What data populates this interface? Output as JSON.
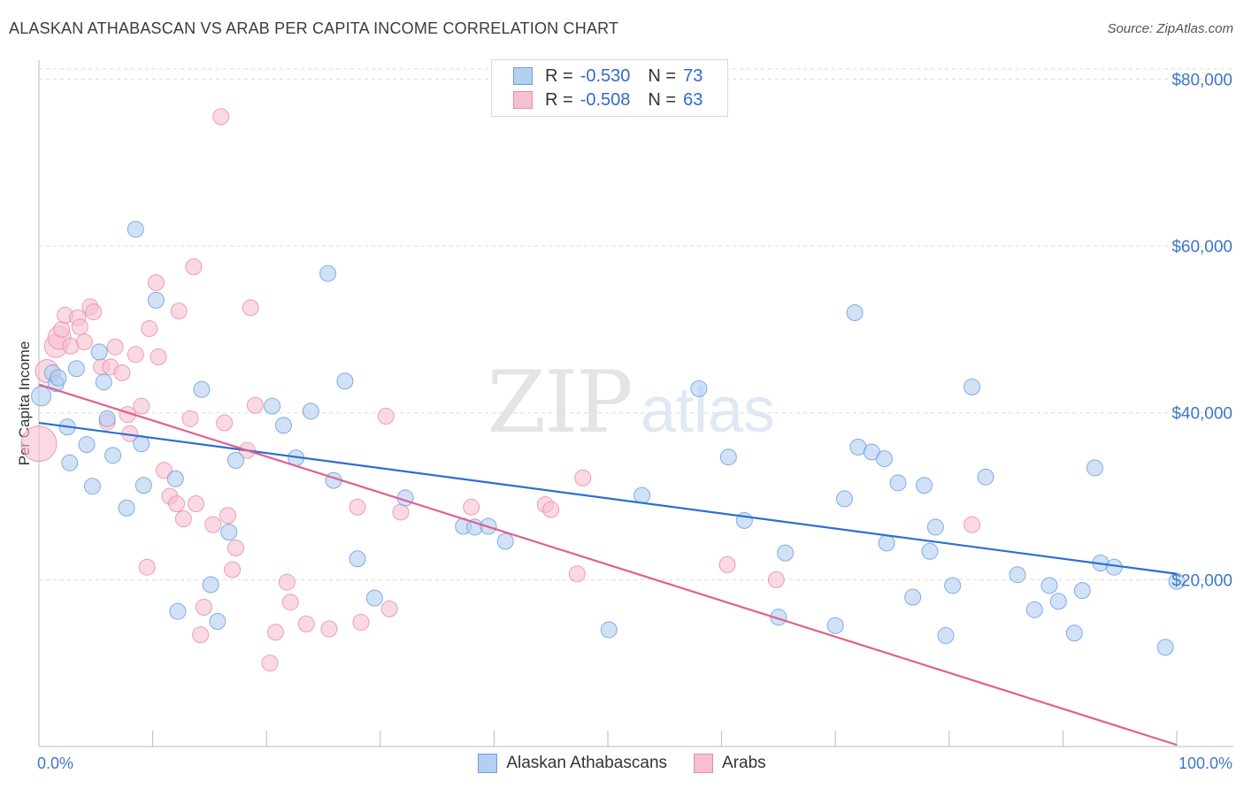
{
  "header": {
    "title": "ALASKAN ATHABASCAN VS ARAB PER CAPITA INCOME CORRELATION CHART",
    "source": "Source: ZipAtlas.com"
  },
  "colors": {
    "blue": "#6f9fe0",
    "blue_fill": "#b3cff2",
    "blue_line": "#2b6fd0",
    "pink": "#e88aa8",
    "pink_fill": "#f6c0d0",
    "pink_line": "#e0608e",
    "axis_text": "#3f76c8"
  },
  "legend_top": [
    {
      "r_label": "R =",
      "r_value": "-0.530",
      "n_label": "N =",
      "n_value": "73"
    },
    {
      "r_label": "R =",
      "r_value": "-0.508",
      "n_label": "N =",
      "n_value": "63"
    }
  ],
  "legend_bottom": [
    "Alaskan Athabascans",
    "Arabs"
  ],
  "chart_data": {
    "type": "scatter",
    "title": "ALASKAN ATHABASCAN VS ARAB PER CAPITA INCOME CORRELATION CHART",
    "xlabel": "",
    "ylabel": "Per Capita Income",
    "xlim": [
      0,
      100
    ],
    "ylim": [
      0,
      81000
    ],
    "x_tick_labels": [
      "0.0%",
      "100.0%"
    ],
    "y_ticks": [
      20000,
      40000,
      60000,
      80000
    ],
    "y_tick_labels": [
      "$20,000",
      "$40,000",
      "$60,000",
      "$80,000"
    ],
    "grid": true,
    "legend_position": "top-center",
    "series": [
      {
        "name": "Alaskan Athabascans",
        "r": -0.53,
        "n": 73,
        "trend": {
          "x": [
            0,
            100
          ],
          "y": [
            38800,
            20700
          ]
        },
        "points": [
          [
            0.2,
            42000
          ],
          [
            1.2,
            44800
          ],
          [
            1.5,
            43500
          ],
          [
            1.7,
            44200
          ],
          [
            2.5,
            38300
          ],
          [
            2.7,
            34000
          ],
          [
            3.3,
            45300
          ],
          [
            4.2,
            36200
          ],
          [
            4.7,
            31200
          ],
          [
            5.3,
            47300
          ],
          [
            5.7,
            43700
          ],
          [
            6.0,
            39300
          ],
          [
            6.5,
            34900
          ],
          [
            7.7,
            28600
          ],
          [
            8.5,
            62000
          ],
          [
            9.0,
            36300
          ],
          [
            9.2,
            31300
          ],
          [
            10.3,
            53500
          ],
          [
            12.0,
            32100
          ],
          [
            12.2,
            16200
          ],
          [
            14.3,
            42800
          ],
          [
            15.1,
            19400
          ],
          [
            15.7,
            15000
          ],
          [
            16.7,
            25700
          ],
          [
            17.3,
            34300
          ],
          [
            20.5,
            40800
          ],
          [
            21.5,
            38500
          ],
          [
            22.6,
            34600
          ],
          [
            23.9,
            40200
          ],
          [
            25.4,
            56700
          ],
          [
            25.9,
            31900
          ],
          [
            26.9,
            43800
          ],
          [
            28.0,
            22500
          ],
          [
            29.5,
            17800
          ],
          [
            32.2,
            29800
          ],
          [
            37.3,
            26400
          ],
          [
            38.3,
            26300
          ],
          [
            39.5,
            26400
          ],
          [
            41.0,
            24600
          ],
          [
            50.1,
            14000
          ],
          [
            53.0,
            30100
          ],
          [
            58.0,
            42900
          ],
          [
            60.6,
            34700
          ],
          [
            62.0,
            27100
          ],
          [
            65.0,
            15500
          ],
          [
            65.6,
            23200
          ],
          [
            70.0,
            14500
          ],
          [
            70.8,
            29700
          ],
          [
            71.7,
            52000
          ],
          [
            72.0,
            35900
          ],
          [
            73.2,
            35300
          ],
          [
            74.3,
            34500
          ],
          [
            74.5,
            24400
          ],
          [
            75.5,
            31600
          ],
          [
            76.8,
            17900
          ],
          [
            77.8,
            31300
          ],
          [
            78.3,
            23400
          ],
          [
            78.8,
            26300
          ],
          [
            79.7,
            13300
          ],
          [
            80.3,
            19300
          ],
          [
            82.0,
            43100
          ],
          [
            83.2,
            32300
          ],
          [
            86.0,
            20600
          ],
          [
            87.5,
            16400
          ],
          [
            88.8,
            19300
          ],
          [
            89.6,
            17400
          ],
          [
            91.0,
            13600
          ],
          [
            91.7,
            18700
          ],
          [
            92.8,
            33400
          ],
          [
            93.3,
            22000
          ],
          [
            99.0,
            11900
          ],
          [
            100.0,
            19800
          ],
          [
            94.5,
            21500
          ]
        ]
      },
      {
        "name": "Arabs",
        "r": -0.508,
        "n": 63,
        "trend": {
          "x": [
            0,
            100
          ],
          "y": [
            43400,
            200
          ]
        },
        "points": [
          [
            0.0,
            36300
          ],
          [
            0.7,
            45000
          ],
          [
            1.5,
            48000
          ],
          [
            1.8,
            49000
          ],
          [
            2.0,
            50000
          ],
          [
            2.3,
            51700
          ],
          [
            2.8,
            48000
          ],
          [
            3.4,
            51400
          ],
          [
            3.6,
            50300
          ],
          [
            4.0,
            48500
          ],
          [
            4.5,
            52700
          ],
          [
            4.8,
            52100
          ],
          [
            5.5,
            45500
          ],
          [
            6.0,
            38900
          ],
          [
            6.3,
            45500
          ],
          [
            6.7,
            47900
          ],
          [
            7.3,
            44800
          ],
          [
            7.8,
            39800
          ],
          [
            8.0,
            37500
          ],
          [
            8.5,
            47000
          ],
          [
            9.0,
            40800
          ],
          [
            9.5,
            21500
          ],
          [
            9.7,
            50100
          ],
          [
            10.3,
            55600
          ],
          [
            10.5,
            46700
          ],
          [
            11.0,
            33100
          ],
          [
            11.5,
            30000
          ],
          [
            12.1,
            29100
          ],
          [
            12.3,
            52200
          ],
          [
            12.7,
            27300
          ],
          [
            13.3,
            39300
          ],
          [
            13.6,
            57500
          ],
          [
            13.8,
            29100
          ],
          [
            14.2,
            13400
          ],
          [
            14.5,
            16700
          ],
          [
            15.3,
            26600
          ],
          [
            16.0,
            75500
          ],
          [
            16.3,
            38800
          ],
          [
            16.6,
            27700
          ],
          [
            17.0,
            21200
          ],
          [
            17.3,
            23800
          ],
          [
            18.3,
            35500
          ],
          [
            18.6,
            52600
          ],
          [
            19.0,
            40900
          ],
          [
            20.3,
            10000
          ],
          [
            20.8,
            13700
          ],
          [
            21.8,
            19700
          ],
          [
            22.1,
            17300
          ],
          [
            23.5,
            14700
          ],
          [
            25.5,
            14100
          ],
          [
            28.0,
            28700
          ],
          [
            28.3,
            14900
          ],
          [
            30.5,
            39600
          ],
          [
            30.8,
            16500
          ],
          [
            31.8,
            28100
          ],
          [
            38.0,
            28700
          ],
          [
            44.5,
            29000
          ],
          [
            45.0,
            28400
          ],
          [
            47.3,
            20700
          ],
          [
            47.8,
            32200
          ],
          [
            60.5,
            21800
          ],
          [
            64.8,
            20000
          ],
          [
            82.0,
            26600
          ]
        ]
      }
    ]
  }
}
